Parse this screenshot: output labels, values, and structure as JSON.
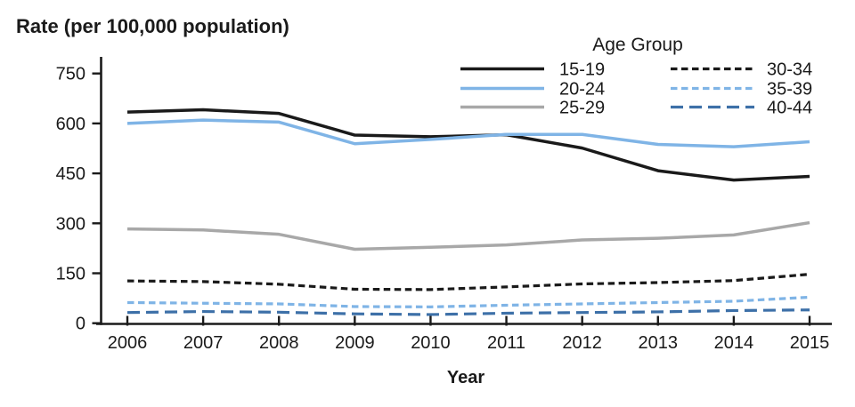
{
  "title": "Rate (per 100,000 population)",
  "x_axis_label": "Year",
  "legend_title": "Age Group",
  "chart_data": {
    "type": "line",
    "title": "Rate (per 100,000 population)",
    "xlabel": "Year",
    "ylabel": "Rate (per 100,000 population)",
    "x": [
      2006,
      2007,
      2008,
      2009,
      2010,
      2011,
      2012,
      2013,
      2014,
      2015
    ],
    "ylim": [
      0,
      750
    ],
    "yticks": [
      0,
      150,
      300,
      450,
      600,
      750
    ],
    "grid": false,
    "legend_title": "Age Group",
    "legend_position": "top-right-two-columns",
    "axis_color": "#1a1a1a",
    "series": [
      {
        "name": "15-19",
        "color": "#1a1a1a",
        "style": "solid",
        "values": [
          634,
          641,
          630,
          565,
          560,
          566,
          526,
          458,
          430,
          441
        ]
      },
      {
        "name": "20-24",
        "color": "#7fb4e6",
        "style": "solid",
        "values": [
          600,
          610,
          604,
          539,
          552,
          567,
          567,
          537,
          530,
          545
        ]
      },
      {
        "name": "25-29",
        "color": "#a8a8a8",
        "style": "solid",
        "values": [
          283,
          280,
          267,
          222,
          228,
          235,
          250,
          255,
          265,
          302
        ]
      },
      {
        "name": "30-34",
        "color": "#1a1a1a",
        "style": "dashed-short",
        "values": [
          127,
          125,
          117,
          102,
          101,
          109,
          118,
          122,
          128,
          147
        ]
      },
      {
        "name": "35-39",
        "color": "#7fb4e6",
        "style": "dashed-short",
        "values": [
          62,
          60,
          58,
          50,
          49,
          54,
          58,
          62,
          66,
          78
        ]
      },
      {
        "name": "40-44",
        "color": "#3d70a8",
        "style": "dashed-long",
        "values": [
          32,
          35,
          33,
          28,
          26,
          30,
          32,
          34,
          38,
          40
        ]
      }
    ]
  }
}
